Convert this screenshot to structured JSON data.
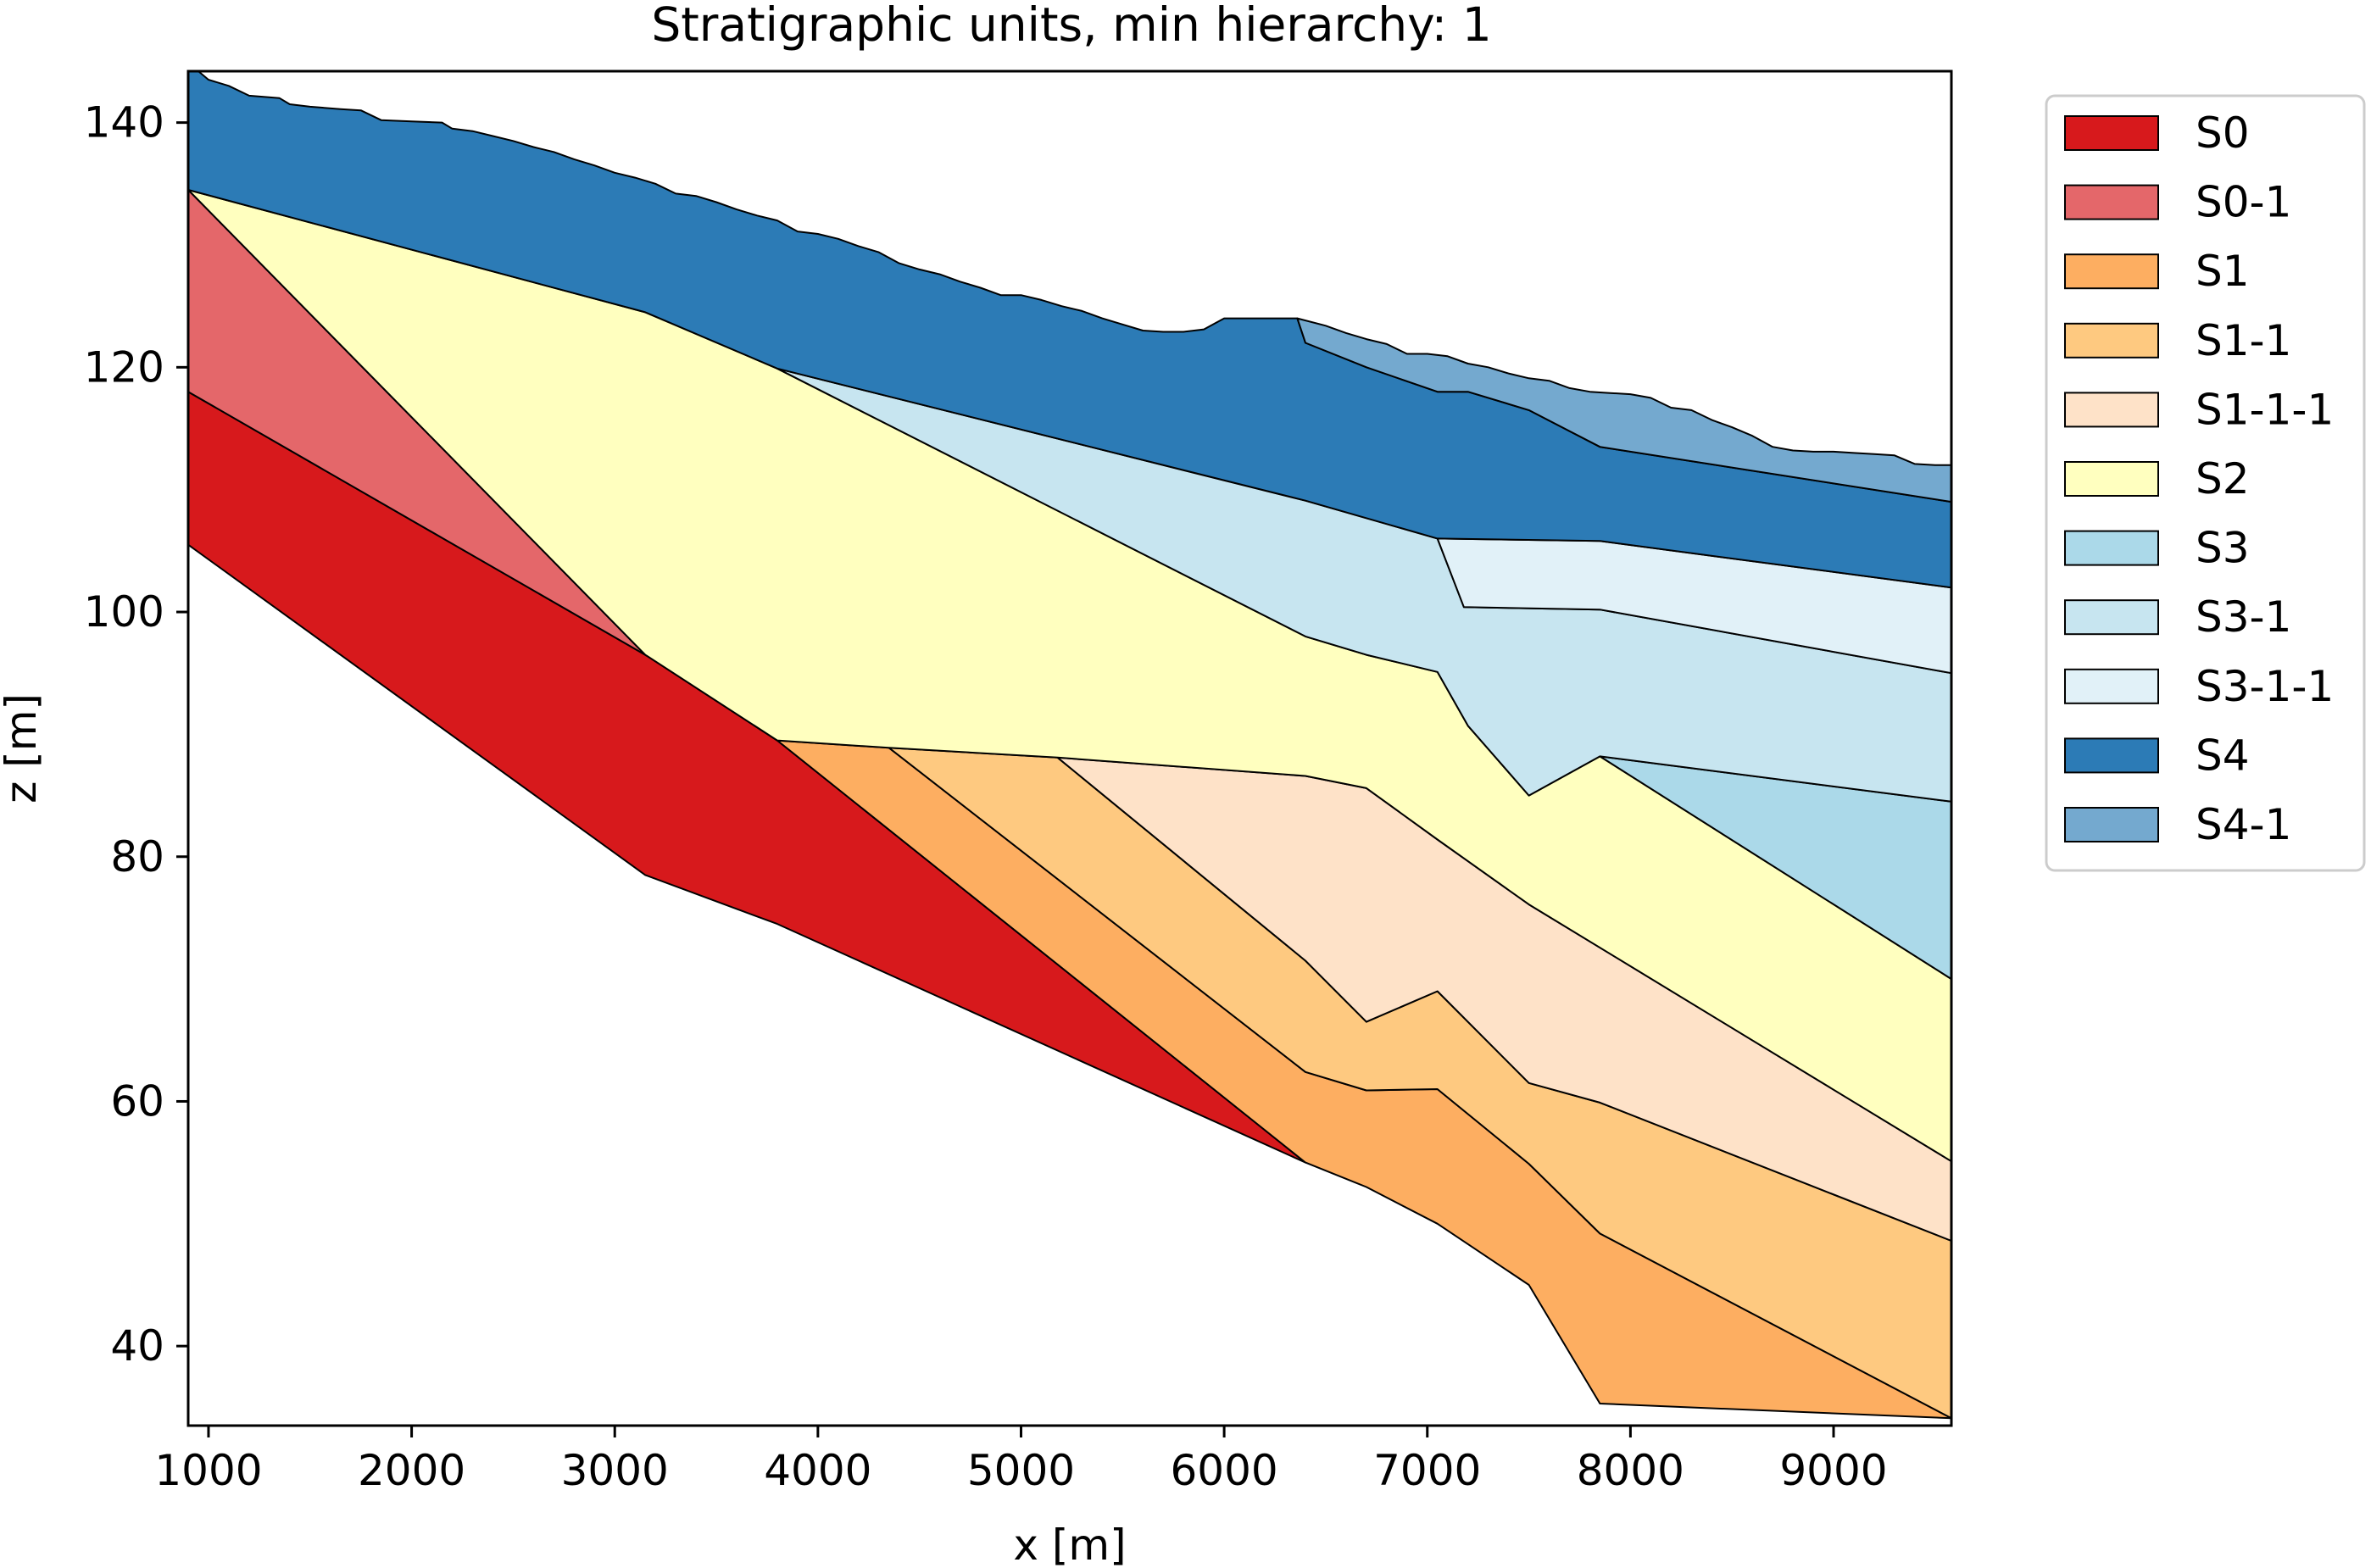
{
  "chart_data": {
    "type": "area",
    "title": "Stratigraphic units, min hierarchy: 1",
    "xlabel": "x [m]",
    "ylabel": "z [m]",
    "xlim": [
      900,
      9580
    ],
    "ylim": [
      33.5,
      144.2
    ],
    "xticks": [
      1000,
      2000,
      3000,
      4000,
      5000,
      6000,
      7000,
      8000,
      9000
    ],
    "yticks": [
      40,
      60,
      80,
      100,
      120,
      140
    ],
    "legend_position": "outside-right",
    "grid": false,
    "units": [
      {
        "name": "S0",
        "color": "#d7191c",
        "polygon": [
          [
            900,
            105.5
          ],
          [
            3150,
            78.5
          ],
          [
            3800,
            74.5
          ],
          [
            6400,
            55
          ],
          [
            3800,
            89.5
          ],
          [
            3150,
            96.5
          ],
          [
            900,
            118
          ]
        ]
      },
      {
        "name": "S0-1",
        "color": "#e4676a",
        "polygon": [
          [
            900,
            118
          ],
          [
            3150,
            96.5
          ],
          [
            900,
            134.5
          ]
        ]
      },
      {
        "name": "S1",
        "color": "#fdae61",
        "polygon": [
          [
            3800,
            89.5
          ],
          [
            6400,
            55
          ],
          [
            6700,
            53
          ],
          [
            7050,
            50
          ],
          [
            7500,
            45
          ],
          [
            7850,
            35.3
          ],
          [
            9580,
            34.1
          ],
          [
            7850,
            49.2
          ],
          [
            7500,
            54.9
          ],
          [
            7050,
            61
          ],
          [
            6700,
            60.9
          ],
          [
            6400,
            62.4
          ],
          [
            4350,
            88.9
          ]
        ]
      },
      {
        "name": "S1-1",
        "color": "#fec980",
        "polygon": [
          [
            4350,
            88.9
          ],
          [
            6400,
            62.4
          ],
          [
            6700,
            60.9
          ],
          [
            7050,
            61
          ],
          [
            7500,
            54.9
          ],
          [
            7850,
            49.2
          ],
          [
            9580,
            34.1
          ],
          [
            9580,
            48.6
          ],
          [
            7850,
            59.9
          ],
          [
            7500,
            61.5
          ],
          [
            7050,
            69
          ],
          [
            6700,
            66.5
          ],
          [
            6400,
            71.5
          ],
          [
            5180,
            88.1
          ]
        ]
      },
      {
        "name": "S1-1-1",
        "color": "#fee2c8",
        "polygon": [
          [
            5180,
            88.1
          ],
          [
            6400,
            71.5
          ],
          [
            6700,
            66.5
          ],
          [
            7050,
            69
          ],
          [
            7500,
            61.5
          ],
          [
            7850,
            59.9
          ],
          [
            9580,
            48.6
          ],
          [
            9580,
            55.1
          ],
          [
            7500,
            76.1
          ],
          [
            7050,
            81.4
          ],
          [
            6700,
            85.6
          ],
          [
            6400,
            86.6
          ]
        ]
      },
      {
        "name": "S2",
        "color": "#ffffbf",
        "polygon": [
          [
            900,
            134.5
          ],
          [
            3150,
            124.5
          ],
          [
            3800,
            119.9
          ],
          [
            6400,
            98
          ],
          [
            6700,
            96.5
          ],
          [
            7050,
            95.1
          ],
          [
            7200,
            90.7
          ],
          [
            7500,
            85
          ],
          [
            7850,
            88.2
          ],
          [
            9580,
            70
          ],
          [
            9580,
            55.1
          ],
          [
            7500,
            76.1
          ],
          [
            7050,
            81.4
          ],
          [
            6700,
            85.6
          ],
          [
            6400,
            86.6
          ],
          [
            5180,
            88.1
          ],
          [
            4350,
            88.9
          ],
          [
            3800,
            89.5
          ],
          [
            3150,
            96.5
          ]
        ]
      },
      {
        "name": "S3",
        "color": "#abd9e9",
        "polygon": [
          [
            7850,
            88.2
          ],
          [
            9580,
            84.5
          ],
          [
            9580,
            70
          ]
        ]
      },
      {
        "name": "S3-1",
        "color": "#c7e5f0",
        "polygon": [
          [
            3800,
            119.9
          ],
          [
            6400,
            109.1
          ],
          [
            7050,
            106
          ],
          [
            7180,
            100.4
          ],
          [
            7850,
            100.2
          ],
          [
            9580,
            95
          ],
          [
            9580,
            84.5
          ],
          [
            7850,
            88.2
          ],
          [
            7500,
            85
          ],
          [
            7200,
            90.7
          ],
          [
            7050,
            95.1
          ],
          [
            6700,
            96.5
          ],
          [
            6400,
            98
          ]
        ]
      },
      {
        "name": "S3-1-1",
        "color": "#e1f1f8",
        "polygon": [
          [
            7050,
            106
          ],
          [
            7850,
            105.8
          ],
          [
            9580,
            102
          ],
          [
            9580,
            95
          ],
          [
            7850,
            100.2
          ],
          [
            7180,
            100.4
          ]
        ]
      },
      {
        "name": "S4",
        "color": "#2c7bb6",
        "polygon": [
          [
            900,
            144.2
          ],
          [
            950,
            144.2
          ],
          [
            1000,
            143.5
          ],
          [
            1100,
            143
          ],
          [
            1200,
            142.2
          ],
          [
            1350,
            142
          ],
          [
            1400,
            141.5
          ],
          [
            1500,
            141.3
          ],
          [
            1650,
            141.1
          ],
          [
            1750,
            141
          ],
          [
            1850,
            140.2
          ],
          [
            2000,
            140.1
          ],
          [
            2150,
            140
          ],
          [
            2200,
            139.5
          ],
          [
            2300,
            139.3
          ],
          [
            2400,
            138.9
          ],
          [
            2500,
            138.5
          ],
          [
            2600,
            138
          ],
          [
            2700,
            137.6
          ],
          [
            2800,
            137
          ],
          [
            2900,
            136.5
          ],
          [
            3000,
            135.9
          ],
          [
            3100,
            135.5
          ],
          [
            3200,
            135
          ],
          [
            3300,
            134.2
          ],
          [
            3400,
            134
          ],
          [
            3500,
            133.5
          ],
          [
            3600,
            132.9
          ],
          [
            3700,
            132.4
          ],
          [
            3800,
            132
          ],
          [
            3900,
            131.1
          ],
          [
            4000,
            130.9
          ],
          [
            4100,
            130.5
          ],
          [
            4200,
            129.9
          ],
          [
            4300,
            129.4
          ],
          [
            4400,
            128.5
          ],
          [
            4500,
            128
          ],
          [
            4600,
            127.6
          ],
          [
            4700,
            127
          ],
          [
            4800,
            126.5
          ],
          [
            4900,
            125.9
          ],
          [
            5000,
            125.9
          ],
          [
            5100,
            125.5
          ],
          [
            5200,
            125
          ],
          [
            5300,
            124.6
          ],
          [
            5400,
            124
          ],
          [
            5500,
            123.5
          ],
          [
            5600,
            123
          ],
          [
            5700,
            122.9
          ],
          [
            5800,
            122.9
          ],
          [
            5900,
            123.1
          ],
          [
            6000,
            124
          ],
          [
            6100,
            124
          ],
          [
            6200,
            124
          ],
          [
            6300,
            124
          ],
          [
            6360,
            124
          ],
          [
            6400,
            122
          ],
          [
            6700,
            120
          ],
          [
            7050,
            118
          ],
          [
            7200,
            118
          ],
          [
            7500,
            116.5
          ],
          [
            7850,
            113.5
          ],
          [
            9580,
            109
          ],
          [
            9580,
            102
          ],
          [
            7850,
            105.8
          ],
          [
            7050,
            106
          ],
          [
            6400,
            109.1
          ],
          [
            3800,
            119.9
          ],
          [
            3150,
            124.5
          ],
          [
            900,
            134.5
          ]
        ]
      },
      {
        "name": "S4-1",
        "color": "#74a9cf",
        "polygon": [
          [
            6360,
            124
          ],
          [
            6500,
            123.4
          ],
          [
            6600,
            122.8
          ],
          [
            6700,
            122.3
          ],
          [
            6800,
            121.9
          ],
          [
            6900,
            121.1
          ],
          [
            7000,
            121.1
          ],
          [
            7100,
            120.9
          ],
          [
            7200,
            120.3
          ],
          [
            7300,
            120
          ],
          [
            7400,
            119.5
          ],
          [
            7500,
            119.1
          ],
          [
            7600,
            118.9
          ],
          [
            7700,
            118.3
          ],
          [
            7800,
            118
          ],
          [
            7900,
            117.9
          ],
          [
            8000,
            117.8
          ],
          [
            8100,
            117.5
          ],
          [
            8200,
            116.7
          ],
          [
            8300,
            116.5
          ],
          [
            8400,
            115.7
          ],
          [
            8500,
            115.1
          ],
          [
            8600,
            114.4
          ],
          [
            8700,
            113.5
          ],
          [
            8800,
            113.2
          ],
          [
            8900,
            113.1
          ],
          [
            9000,
            113.1
          ],
          [
            9100,
            113
          ],
          [
            9200,
            112.9
          ],
          [
            9300,
            112.8
          ],
          [
            9400,
            112.1
          ],
          [
            9500,
            112
          ],
          [
            9580,
            112
          ],
          [
            9580,
            109
          ],
          [
            7850,
            113.5
          ],
          [
            7500,
            116.5
          ],
          [
            7200,
            118
          ],
          [
            7050,
            118
          ],
          [
            6700,
            120
          ],
          [
            6400,
            122
          ]
        ]
      }
    ]
  }
}
